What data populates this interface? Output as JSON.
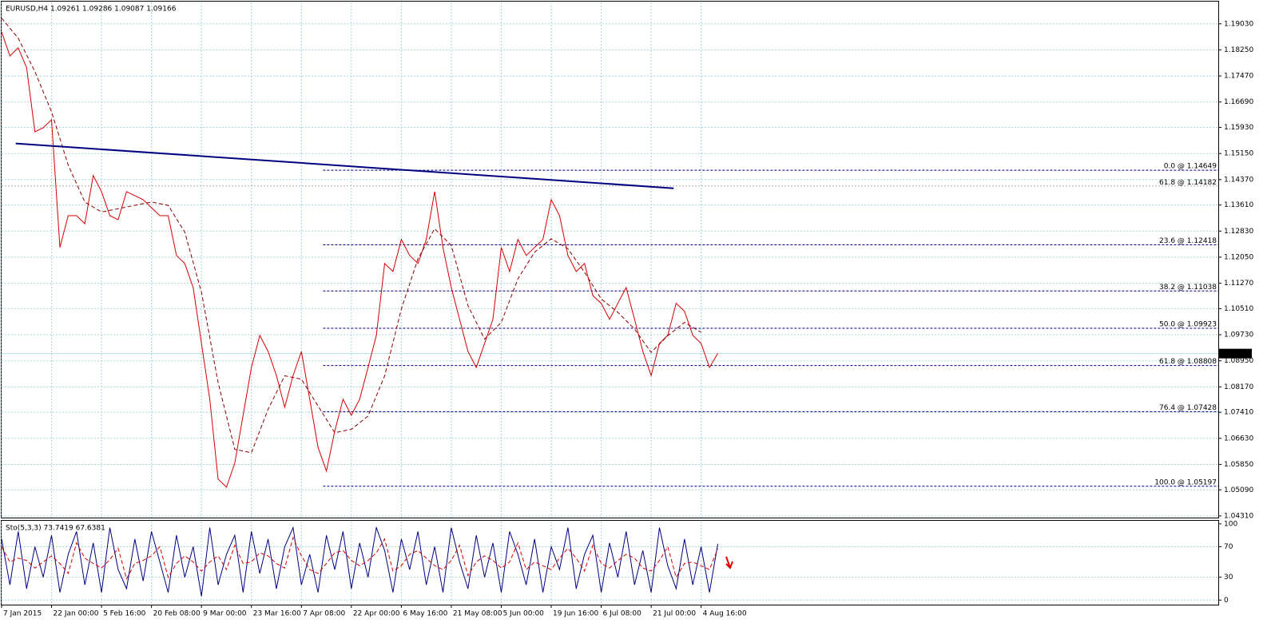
{
  "chart_data": [
    {
      "type": "line",
      "title": "EURUSD,H4 1.09261 1.09286 1.09087 1.09166",
      "xlim": [
        0,
        1461
      ],
      "ylim": [
        1.0426,
        1.1967
      ],
      "grid": true,
      "xticks": [
        {
          "value": 0,
          "label": "7 Jan 2015"
        },
        {
          "value": 60,
          "label": "22 Jan 00:00"
        },
        {
          "value": 120,
          "label": "5 Feb 16:00"
        },
        {
          "value": 180,
          "label": "20 Feb 08:00"
        },
        {
          "value": 240,
          "label": "9 Mar 00:00"
        },
        {
          "value": 300,
          "label": "23 Mar 16:00"
        },
        {
          "value": 360,
          "label": "7 Apr 08:00"
        },
        {
          "value": 420,
          "label": "22 Apr 00:00"
        },
        {
          "value": 480,
          "label": "6 May 16:00"
        },
        {
          "value": 540,
          "label": "21 May 08:00"
        },
        {
          "value": 600,
          "label": "5 Jun 00:00"
        },
        {
          "value": 660,
          "label": "19 Jun 16:00"
        },
        {
          "value": 720,
          "label": "6 Jul 08:00"
        },
        {
          "value": 780,
          "label": "21 Jul 00:00"
        },
        {
          "value": 840,
          "label": "4 Aug 16:00"
        }
      ],
      "yticks": [
        {
          "value": 1.1903,
          "label": "1.19030"
        },
        {
          "value": 1.1825,
          "label": "1.18250"
        },
        {
          "value": 1.1747,
          "label": "1.17470"
        },
        {
          "value": 1.1669,
          "label": "1.16690"
        },
        {
          "value": 1.1593,
          "label": "1.15930"
        },
        {
          "value": 1.1515,
          "label": "1.15150"
        },
        {
          "value": 1.1437,
          "label": "1.14370"
        },
        {
          "value": 1.1361,
          "label": "1.13610"
        },
        {
          "value": 1.1283,
          "label": "1.12830"
        },
        {
          "value": 1.1205,
          "label": "1.12050"
        },
        {
          "value": 1.1127,
          "label": "1.11270"
        },
        {
          "value": 1.1051,
          "label": "1.10510"
        },
        {
          "value": 1.0973,
          "label": "1.09730"
        },
        {
          "value": 1.0895,
          "label": "1.08950"
        },
        {
          "value": 1.0817,
          "label": "1.08170"
        },
        {
          "value": 1.0741,
          "label": "1.07410"
        },
        {
          "value": 1.0663,
          "label": "1.06630"
        },
        {
          "value": 1.0585,
          "label": "1.05850"
        },
        {
          "value": 1.0509,
          "label": "1.05090"
        },
        {
          "value": 1.0431,
          "label": "1.04310"
        }
      ],
      "x": [
        0,
        10,
        20,
        30,
        40,
        50,
        60,
        70,
        80,
        90,
        100,
        110,
        120,
        130,
        140,
        150,
        160,
        170,
        180,
        190,
        200,
        210,
        220,
        230,
        240,
        250,
        260,
        270,
        280,
        290,
        300,
        310,
        320,
        330,
        340,
        350,
        360,
        370,
        380,
        390,
        400,
        410,
        420,
        430,
        440,
        450,
        460,
        470,
        480,
        490,
        500,
        510,
        520,
        530,
        540,
        550,
        560,
        570,
        580,
        590,
        600,
        610,
        620,
        630,
        640,
        650,
        660,
        670,
        680,
        690,
        700,
        710,
        720,
        730,
        740,
        750,
        760,
        770,
        780,
        790,
        800,
        810,
        820,
        830,
        840,
        850,
        860
      ],
      "series": [
        {
          "color": "#d40000",
          "values": [
            1.1879,
            1.1807,
            1.1831,
            1.1772,
            1.158,
            1.1592,
            1.1616,
            1.1234,
            1.1329,
            1.1329,
            1.1305,
            1.1449,
            1.1401,
            1.1329,
            1.1317,
            1.1401,
            1.1389,
            1.1377,
            1.1353,
            1.1329,
            1.1329,
            1.121,
            1.1186,
            1.1114,
            1.0947,
            1.078,
            1.0541,
            1.0517,
            1.0589,
            1.0732,
            1.0875,
            1.0971,
            1.0923,
            1.0851,
            1.0756,
            1.0851,
            1.0923,
            1.078,
            1.0636,
            1.0565,
            1.0684,
            1.078,
            1.0732,
            1.078,
            1.0875,
            1.0971,
            1.1186,
            1.1162,
            1.1258,
            1.121,
            1.1186,
            1.1258,
            1.1401,
            1.1234,
            1.1114,
            1.1019,
            1.0923,
            1.0875,
            1.0947,
            1.1019,
            1.1234,
            1.1162,
            1.1258,
            1.121,
            1.1234,
            1.1258,
            1.1377,
            1.1329,
            1.121,
            1.1162,
            1.1186,
            1.109,
            1.1067,
            1.1019,
            1.1067,
            1.1114,
            1.1019,
            1.0923,
            1.0851,
            1.0947,
            1.0971,
            1.1067,
            1.1043,
            1.0971,
            1.0947,
            1.0875,
            1.0917
          ]
        },
        {
          "color": "#8b0000",
          "dashed": true,
          "x": [
            0,
            20,
            40,
            60,
            80,
            100,
            120,
            140,
            160,
            180,
            200,
            220,
            240,
            260,
            280,
            300,
            320,
            340,
            360,
            380,
            400,
            420,
            440,
            460,
            480,
            500,
            520,
            540,
            560,
            580,
            600,
            620,
            640,
            660,
            680,
            700,
            720,
            740,
            760,
            780,
            800,
            820,
            840
          ],
          "values": [
            1.192,
            1.186,
            1.176,
            1.164,
            1.148,
            1.137,
            1.134,
            1.135,
            1.136,
            1.137,
            1.136,
            1.128,
            1.11,
            1.083,
            1.063,
            1.062,
            1.075,
            1.085,
            1.084,
            1.076,
            1.068,
            1.069,
            1.073,
            1.085,
            1.105,
            1.12,
            1.129,
            1.124,
            1.106,
            1.096,
            1.101,
            1.114,
            1.122,
            1.126,
            1.123,
            1.116,
            1.108,
            1.104,
            1.099,
            1.092,
            1.097,
            1.101,
            1.098
          ]
        }
      ],
      "trendline": {
        "color": "#000080",
        "x": [
          17,
          807
        ],
        "y": [
          1.1545,
          1.1411
        ]
      },
      "fibonacci": {
        "x_start": 386,
        "color": "#000080",
        "levels": [
          {
            "label": "0.0 @ 1.14649",
            "value": 1.14649
          },
          {
            "label": "23.6 @ 1.12418",
            "value": 1.12418
          },
          {
            "label": "38.2 @ 1.11038",
            "value": 1.11038
          },
          {
            "label": "50.0 @ 1.09923",
            "value": 1.09923
          },
          {
            "label": "61.8 @ 1.08808",
            "value": 1.08808
          },
          {
            "label": "76.4 @ 1.07428",
            "value": 1.07428
          },
          {
            "label": "100.0 @ 1.05197",
            "value": 1.05197
          }
        ]
      },
      "reference_level": {
        "label": "61.8 @ 1.14182",
        "value": 1.14182,
        "color": "#b0b0b0"
      },
      "last_price": 1.09166
    },
    {
      "type": "line",
      "title": "Sto(5,3,3) 73.7419 67.6381",
      "xlim": [
        0,
        1461
      ],
      "ylim": [
        -6,
        103
      ],
      "yticks": [
        0,
        30,
        70,
        100
      ],
      "x": [
        0,
        10,
        20,
        30,
        40,
        50,
        60,
        70,
        80,
        90,
        100,
        110,
        120,
        130,
        140,
        150,
        160,
        170,
        180,
        190,
        200,
        210,
        220,
        230,
        240,
        250,
        260,
        270,
        280,
        290,
        300,
        310,
        320,
        330,
        340,
        350,
        360,
        370,
        380,
        390,
        400,
        410,
        420,
        430,
        440,
        450,
        460,
        470,
        480,
        490,
        500,
        510,
        520,
        530,
        540,
        550,
        560,
        570,
        580,
        590,
        600,
        610,
        620,
        630,
        640,
        650,
        660,
        670,
        680,
        690,
        700,
        710,
        720,
        730,
        740,
        750,
        760,
        770,
        780,
        790,
        800,
        810,
        820,
        830,
        840,
        850,
        860
      ],
      "series": [
        {
          "color": "#000080",
          "values": [
            80,
            20,
            90,
            15,
            70,
            30,
            85,
            10,
            60,
            90,
            20,
            75,
            10,
            95,
            40,
            15,
            80,
            25,
            90,
            50,
            10,
            85,
            30,
            70,
            5,
            95,
            20,
            60,
            85,
            10,
            90,
            35,
            80,
            15,
            70,
            95,
            20,
            60,
            10,
            85,
            40,
            90,
            15,
            75,
            30,
            95,
            65,
            10,
            80,
            40,
            90,
            20,
            70,
            10,
            95,
            50,
            15,
            85,
            30,
            75,
            10,
            90,
            60,
            20,
            80,
            10,
            70,
            40,
            95,
            15,
            60,
            85,
            10,
            75,
            30,
            90,
            20,
            65,
            10,
            95,
            45,
            15,
            80,
            20,
            70,
            10,
            73.7
          ]
        },
        {
          "color": "#d40000",
          "dashed": true,
          "values": [
            70,
            50,
            55,
            52,
            42,
            50,
            58,
            48,
            35,
            75,
            55,
            48,
            42,
            53,
            68,
            28,
            48,
            52,
            58,
            70,
            30,
            48,
            58,
            50,
            38,
            50,
            58,
            40,
            72,
            48,
            50,
            62,
            58,
            48,
            42,
            82,
            58,
            40,
            35,
            48,
            62,
            65,
            52,
            45,
            52,
            62,
            80,
            38,
            45,
            60,
            65,
            55,
            45,
            40,
            52,
            72,
            32,
            50,
            58,
            52,
            42,
            50,
            75,
            40,
            50,
            45,
            40,
            55,
            68,
            55,
            38,
            72,
            48,
            42,
            52,
            60,
            55,
            42,
            38,
            52,
            70,
            30,
            48,
            50,
            45,
            40,
            67.6
          ]
        }
      ]
    }
  ]
}
